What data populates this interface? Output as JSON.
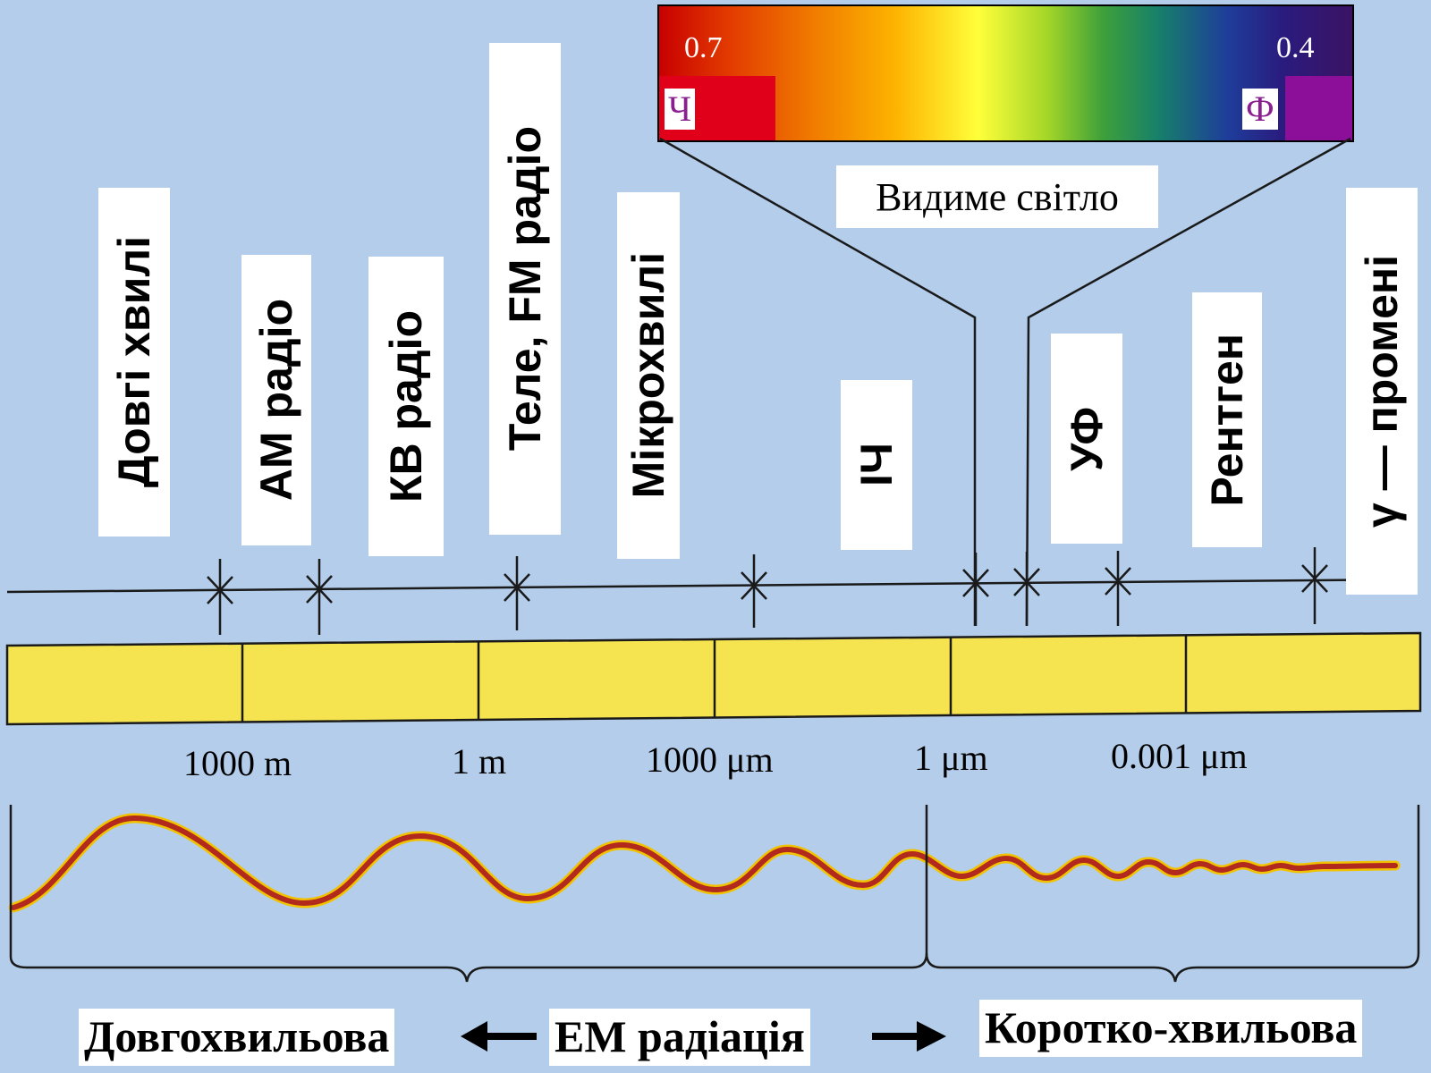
{
  "spectrum": {
    "red_value": "0.7",
    "violet_value": "0.4",
    "red_letter": "Ч",
    "violet_letter": "Ф",
    "label": "Видиме світло",
    "colors": {
      "red_block": "#e0001a",
      "violet_block": "#8c0f9a",
      "letter_color": "#8a1f8f"
    }
  },
  "bands": [
    {
      "label": "Довгі хвилі"
    },
    {
      "label": "АМ радіо"
    },
    {
      "label": "КВ радіо"
    },
    {
      "label": "Теле, FM радіо"
    },
    {
      "label": "Мікрохвилі"
    },
    {
      "label": "ІЧ"
    },
    {
      "label": "УФ"
    },
    {
      "label": "Рентген"
    },
    {
      "label": "γ — промені"
    }
  ],
  "scale": [
    "1000 m",
    "1 m",
    "1000 μm",
    "1 μm",
    "0.001 μm"
  ],
  "footer": {
    "left": "Довгохвильова",
    "center": "ЕМ радіація",
    "right": "Коротко-хвильова"
  },
  "colors": {
    "background": "#b3cdeb",
    "scale_bar": "#f5e44f",
    "wave": "#b22a1e"
  }
}
